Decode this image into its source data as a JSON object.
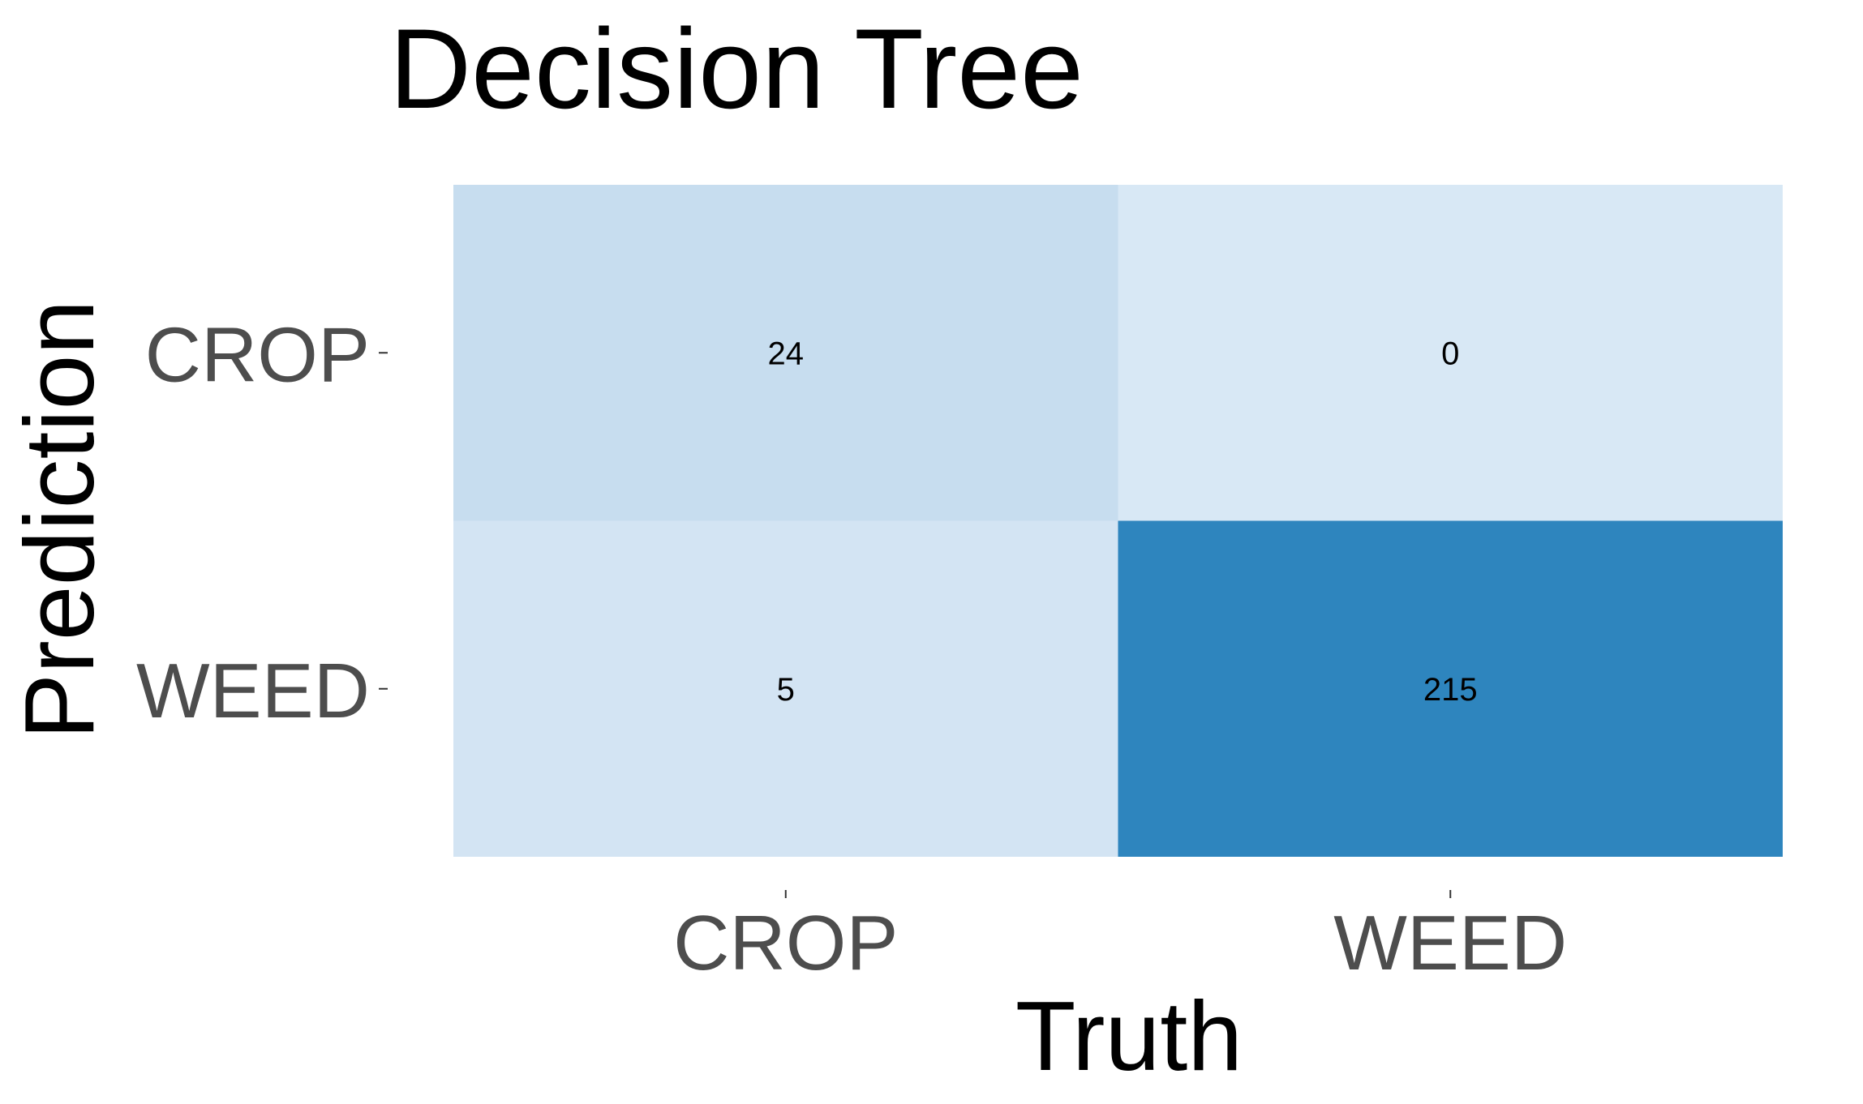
{
  "chart_data": {
    "type": "heatmap",
    "title": "Decision Tree",
    "xlabel": "Truth",
    "ylabel": "Prediction",
    "x_categories": [
      "CROP",
      "WEED"
    ],
    "y_categories": [
      "CROP",
      "WEED"
    ],
    "cells": [
      {
        "prediction": "CROP",
        "truth": "CROP",
        "value": 24,
        "color": "#c7ddef"
      },
      {
        "prediction": "CROP",
        "truth": "WEED",
        "value": 0,
        "color": "#d8e8f5"
      },
      {
        "prediction": "WEED",
        "truth": "CROP",
        "value": 5,
        "color": "#d3e4f3"
      },
      {
        "prediction": "WEED",
        "truth": "WEED",
        "value": 215,
        "color": "#2e85be"
      }
    ],
    "color_scale": {
      "low": "#d8e8f5",
      "high": "#2e85be"
    },
    "legend": "none",
    "grid": false
  }
}
